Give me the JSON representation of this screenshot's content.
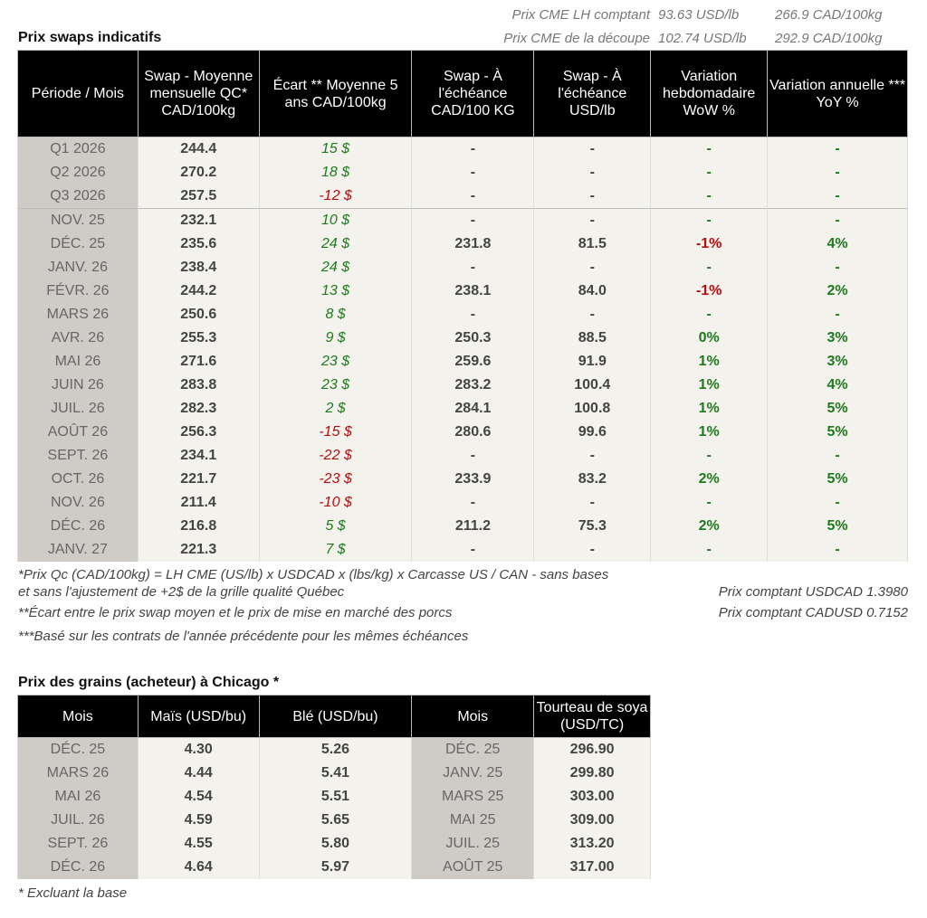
{
  "cme": {
    "lh_label": "Prix CME LH comptant",
    "lh_usd": "93.63 USD/lb",
    "lh_cad": "266.9 CAD/100kg",
    "cut_label": "Prix CME de la découpe",
    "cut_usd": "102.74 USD/lb",
    "cut_cad": "292.9 CAD/100kg"
  },
  "swaps": {
    "title": "Prix swaps indicatifs",
    "headers": [
      "Période / Mois",
      "Swap - Moyenne mensuelle QC* CAD/100kg",
      "Écart ** Moyenne 5 ans CAD/100kg",
      "Swap - À l'échéance CAD/100 KG",
      "Swap - À l'échéance USD/lb",
      "Variation hebdomadaire WoW %",
      "Variation annuelle *** YoY %"
    ],
    "rows": [
      [
        "Q1 2026",
        "244.4",
        "15 $",
        "-",
        "-",
        "-",
        "-"
      ],
      [
        "Q2 2026",
        "270.2",
        "18 $",
        "-",
        "-",
        "-",
        "-"
      ],
      [
        "Q3 2026",
        "257.5",
        "-12 $",
        "-",
        "-",
        "-",
        "-"
      ],
      [
        "NOV. 25",
        "232.1",
        "10 $",
        "-",
        "-",
        "-",
        "-"
      ],
      [
        "DÉC. 25",
        "235.6",
        "24 $",
        "231.8",
        "81.5",
        "-1%",
        "4%"
      ],
      [
        "JANV. 26",
        "238.4",
        "24 $",
        "-",
        "-",
        "-",
        "-"
      ],
      [
        "FÉVR. 26",
        "244.2",
        "13 $",
        "238.1",
        "84.0",
        "-1%",
        "2%"
      ],
      [
        "MARS 26",
        "250.6",
        "8 $",
        "-",
        "-",
        "-",
        "-"
      ],
      [
        "AVR. 26",
        "255.3",
        "9 $",
        "250.3",
        "88.5",
        "0%",
        "3%"
      ],
      [
        "MAI 26",
        "271.6",
        "23 $",
        "259.6",
        "91.9",
        "1%",
        "3%"
      ],
      [
        "JUIN 26",
        "283.8",
        "23 $",
        "283.2",
        "100.4",
        "1%",
        "4%"
      ],
      [
        "JUIL. 26",
        "282.3",
        "2 $",
        "284.1",
        "100.8",
        "1%",
        "5%"
      ],
      [
        "AOÛT 26",
        "256.3",
        "-15 $",
        "280.6",
        "99.6",
        "1%",
        "5%"
      ],
      [
        "SEPT. 26",
        "234.1",
        "-22 $",
        "-",
        "-",
        "-",
        "-"
      ],
      [
        "OCT. 26",
        "221.7",
        "-23 $",
        "233.9",
        "83.2",
        "2%",
        "5%"
      ],
      [
        "NOV. 26",
        "211.4",
        "-10 $",
        "-",
        "-",
        "-",
        "-"
      ],
      [
        "DÉC. 26",
        "216.8",
        "5 $",
        "211.2",
        "75.3",
        "2%",
        "5%"
      ],
      [
        "JANV. 27",
        "221.3",
        "7 $",
        "-",
        "-",
        "-",
        "-"
      ]
    ],
    "note1_line1": "*Prix Qc (CAD/100kg) = LH CME (US/lb) x USDCAD x (lbs/kg) x Carcasse US / CAN - sans bases",
    "note1_line2": "et sans l'ajustement de +2$ de la grille qualité Québec",
    "note2": "**Écart entre le prix swap moyen et le prix de mise en marché des porcs",
    "note3": "***Basé sur les contrats de l'année précédente pour les mêmes échéances",
    "usdcad": "Prix comptant USDCAD 1.3980",
    "cadusd": "Prix comptant CADUSD 0.7152"
  },
  "grains": {
    "title": "Prix des grains (acheteur) à Chicago *",
    "headers": [
      "Mois",
      "Maïs (USD/bu)",
      "Blé (USD/bu)",
      "Mois",
      "Tourteau de soya (USD/TC)"
    ],
    "rows": [
      [
        "DÉC. 25",
        "4.30",
        "5.26",
        "DÉC. 25",
        "296.90"
      ],
      [
        "MARS 26",
        "4.44",
        "5.41",
        "JANV. 25",
        "299.80"
      ],
      [
        "MAI 26",
        "4.54",
        "5.51",
        "MARS 25",
        "303.00"
      ],
      [
        "JUIL. 26",
        "4.59",
        "5.65",
        "MAI 25",
        "309.00"
      ],
      [
        "SEPT. 26",
        "4.55",
        "5.80",
        "JUIL. 25",
        "313.20"
      ],
      [
        "DÉC. 26",
        "4.64",
        "5.97",
        "AOÛT 25",
        "317.00"
      ]
    ],
    "note": "* Excluant la base"
  },
  "colors": {
    "positive": "#1e7a1e",
    "negative": "#b01010",
    "header_bg": "#000000",
    "period_bg": "#cfcbc6",
    "cell_bg": "#f4f2ed"
  }
}
